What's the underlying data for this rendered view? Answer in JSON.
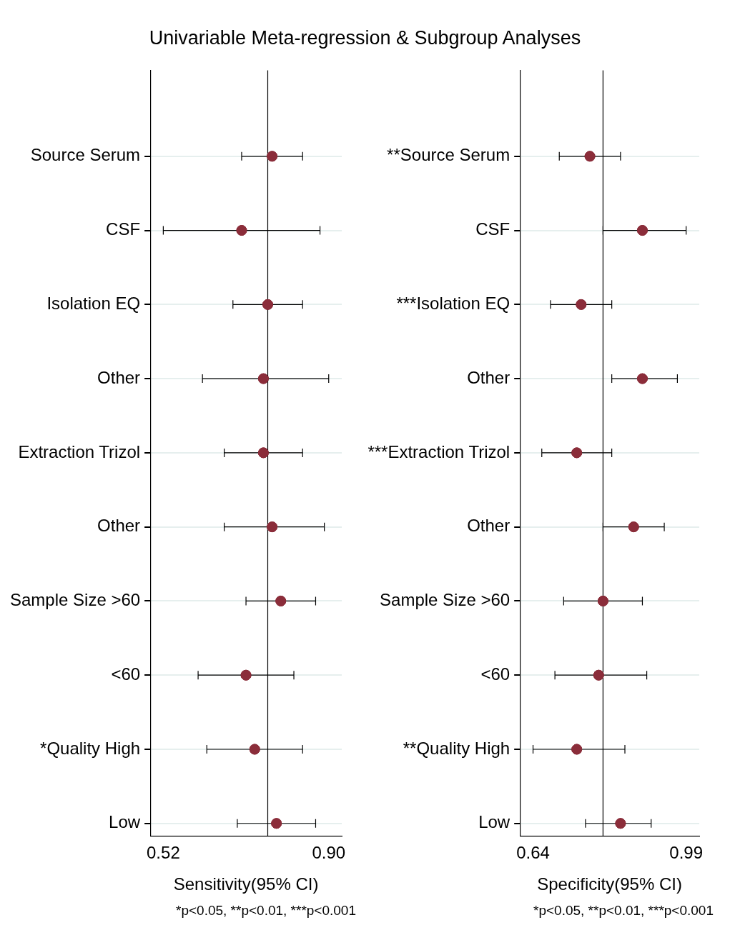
{
  "chart_data": [
    {
      "type": "scatter",
      "title": "Univariable Meta-regression & Subgroup Analyses",
      "orientation": "horizontal",
      "marker": "circle",
      "grid": "y",
      "xlabel": "Sensitivity(95% CI)",
      "categories": [
        "Source Serum",
        "CSF",
        "Isolation EQ",
        "Other",
        "Extraction Trizol",
        "Other",
        "Sample Size >60",
        "<60",
        "*Quality High",
        "Low"
      ],
      "values": [
        0.77,
        0.7,
        0.76,
        0.75,
        0.75,
        0.77,
        0.79,
        0.71,
        0.73,
        0.78
      ],
      "errors": [
        [
          0.7,
          0.84
        ],
        [
          0.52,
          0.88
        ],
        [
          0.68,
          0.84
        ],
        [
          0.61,
          0.9
        ],
        [
          0.66,
          0.84
        ],
        [
          0.66,
          0.89
        ],
        [
          0.71,
          0.87
        ],
        [
          0.6,
          0.82
        ],
        [
          0.62,
          0.84
        ],
        [
          0.69,
          0.87
        ]
      ],
      "color": "#8b2d3a",
      "xlim": [
        0.49,
        0.93
      ],
      "xticks": [
        0.52,
        {
          "value": 0.9,
          "label": "0.90"
        }
      ],
      "ref_lines": [
        {
          "axis": "x",
          "value": 0.76,
          "color": "#000000"
        }
      ],
      "annotations": [
        "*p<0.05, **p<0.01, ***p<0.001"
      ]
    },
    {
      "type": "scatter",
      "orientation": "horizontal",
      "marker": "circle",
      "grid": "y",
      "xlabel": "Specificity(95% CI)",
      "categories": [
        "**Source Serum",
        "CSF",
        "***Isolation EQ",
        "Other",
        "***Extraction Trizol",
        "Other",
        "Sample Size >60",
        "<60",
        "**Quality High",
        "Low"
      ],
      "values": [
        0.77,
        0.89,
        0.75,
        0.89,
        0.74,
        0.87,
        0.8,
        0.79,
        0.74,
        0.84
      ],
      "errors": [
        [
          0.7,
          0.84
        ],
        [
          0.8,
          0.99
        ],
        [
          0.68,
          0.82
        ],
        [
          0.82,
          0.97
        ],
        [
          0.66,
          0.82
        ],
        [
          0.8,
          0.94
        ],
        [
          0.71,
          0.89
        ],
        [
          0.69,
          0.9
        ],
        [
          0.64,
          0.85
        ],
        [
          0.76,
          0.91
        ]
      ],
      "color": "#8b2d3a",
      "xlim": [
        0.61,
        1.02
      ],
      "xticks": [
        0.64,
        0.99
      ],
      "ref_lines": [
        {
          "axis": "x",
          "value": 0.8,
          "color": "#000000"
        }
      ],
      "annotations": [
        "*p<0.05, **p<0.01, ***p<0.001"
      ]
    }
  ]
}
